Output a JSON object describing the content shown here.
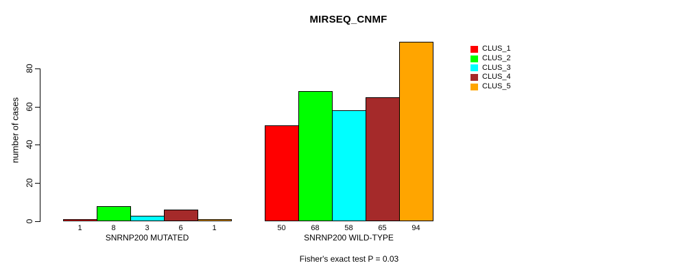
{
  "chart_data": {
    "type": "bar",
    "title": "MIRSEQ_CNMF",
    "ylabel": "number of cases",
    "yticks": [
      0,
      20,
      40,
      60,
      80
    ],
    "ylim": [
      0,
      94
    ],
    "grid": false,
    "legend_position": "top-right",
    "bar_value_labels_shown": true,
    "caption": "Fisher's exact test P = 0.03",
    "series": [
      {
        "name": "CLUS_1",
        "color": "#FF0000"
      },
      {
        "name": "CLUS_2",
        "color": "#00FF00"
      },
      {
        "name": "CLUS_3",
        "color": "#00FFFF"
      },
      {
        "name": "CLUS_4",
        "color": "#A52A2A"
      },
      {
        "name": "CLUS_5",
        "color": "#FFA500"
      }
    ],
    "groups": [
      {
        "label": "SNRNP200 MUTATED",
        "values": [
          1,
          8,
          3,
          6,
          1
        ]
      },
      {
        "label": "SNRNP200 WILD-TYPE",
        "values": [
          50,
          68,
          58,
          65,
          94
        ]
      }
    ]
  }
}
